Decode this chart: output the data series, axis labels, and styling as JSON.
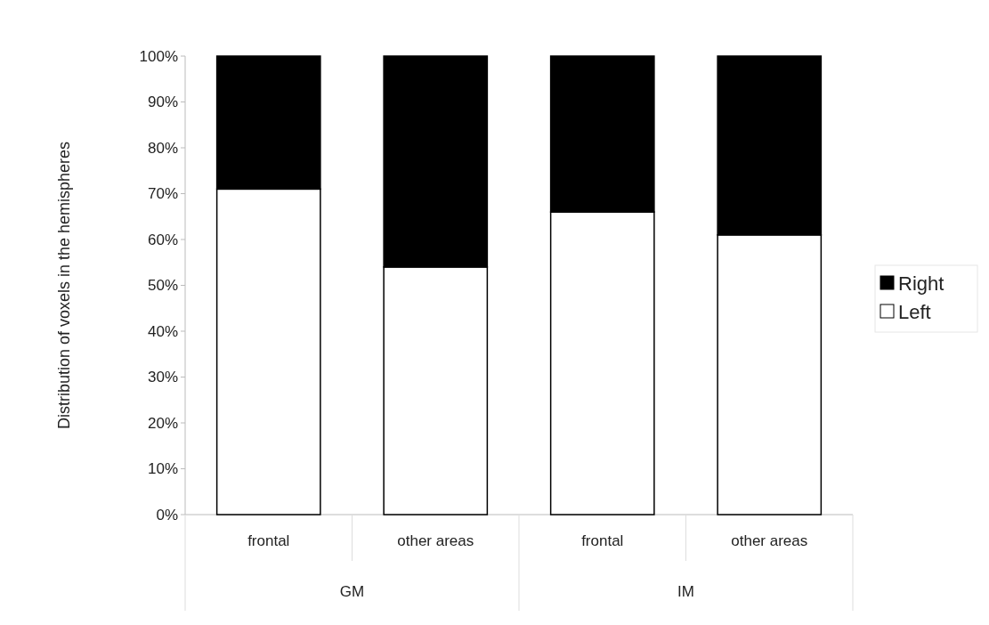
{
  "chart_data": {
    "type": "bar",
    "stacked": true,
    "ylabel": "Distribution of voxels in the hemispheres",
    "categories": [
      "frontal",
      "other areas",
      "frontal",
      "other areas"
    ],
    "series": [
      {
        "name": "Left",
        "color": "#ffffff",
        "values": [
          71,
          54,
          66,
          61
        ]
      },
      {
        "name": "Right",
        "color": "#000000",
        "values": [
          29,
          46,
          34,
          39
        ]
      }
    ],
    "annotations": [
      "GM",
      "IM"
    ],
    "ylim": [
      0,
      100
    ],
    "yticks": [
      {
        "value": 0,
        "label": "0%"
      },
      {
        "value": 10,
        "label": "10%"
      },
      {
        "value": 20,
        "label": "20%"
      },
      {
        "value": 30,
        "label": "30%"
      },
      {
        "value": 40,
        "label": "40%"
      },
      {
        "value": 50,
        "label": "50%"
      },
      {
        "value": 60,
        "label": "60%"
      },
      {
        "value": 70,
        "label": "70%"
      },
      {
        "value": 80,
        "label": "80%"
      },
      {
        "value": 90,
        "label": "90%"
      },
      {
        "value": 100,
        "label": "100%"
      }
    ],
    "legend": "right",
    "grid": false
  }
}
